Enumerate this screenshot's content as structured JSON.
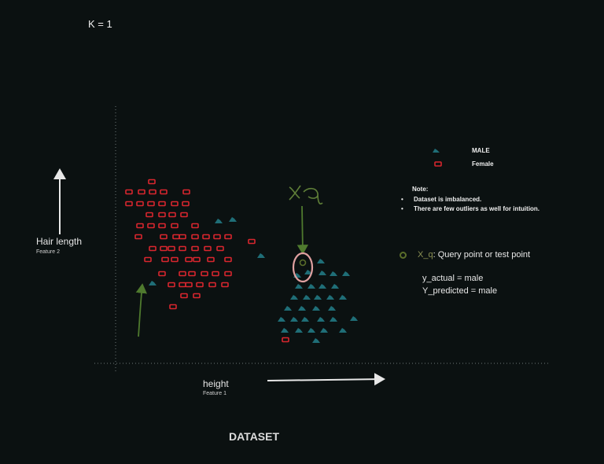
{
  "header": {
    "k_label": "K = 1"
  },
  "axes": {
    "y_label": "Hair length",
    "y_sublabel": "Feature 2",
    "x_label": "height",
    "x_sublabel": "Feature 1"
  },
  "caption": "DATASET",
  "legend": {
    "male": {
      "label": "MALE",
      "color": "#1f6e77"
    },
    "female": {
      "label": "Female",
      "color": "#d8262e"
    }
  },
  "note": {
    "title": "Note:",
    "items": [
      "Dataset is imbalanced.",
      "There are few outliers as well for intuition."
    ]
  },
  "query": {
    "handwritten": "xq",
    "label_prefix": "X_q",
    "label_text": ":  Query point or  test point",
    "y_actual": "y_actual = male",
    "y_predicted": "Y_predicted = male",
    "annotation_color": "#4f7a2e",
    "highlight_color": "#e0a0a0"
  }
}
